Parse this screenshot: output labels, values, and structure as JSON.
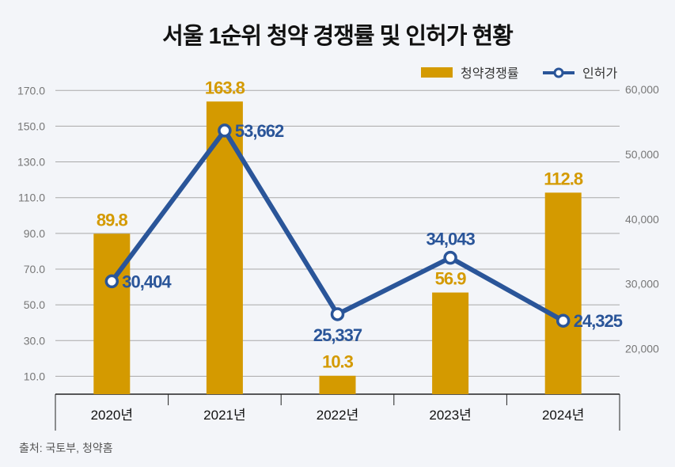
{
  "title": "서울 1순위 청약 경쟁률 및 인허가 현황",
  "source": "출처: 국토부, 청약홈",
  "chart_data": {
    "type": "bar+line",
    "categories": [
      "2020년",
      "2021년",
      "2022년",
      "2023년",
      "2024년"
    ],
    "series": [
      {
        "name": "청약경쟁률",
        "type": "bar",
        "axis": "left",
        "color": "#d49a00",
        "values": [
          89.8,
          163.8,
          10.3,
          56.9,
          112.8
        ],
        "labels": [
          "89.8",
          "163.8",
          "10.3",
          "56.9",
          "112.8"
        ]
      },
      {
        "name": "인허가",
        "type": "line",
        "axis": "right",
        "color": "#2a5599",
        "values": [
          30404,
          53662,
          25337,
          34043,
          24325
        ],
        "labels": [
          "30,404",
          "53,662",
          "25,337",
          "34,043",
          "24,325"
        ]
      }
    ],
    "left_axis": {
      "ylim": [
        0,
        171
      ],
      "ticks": [
        10,
        30,
        50,
        70,
        90,
        110,
        130,
        150,
        170
      ],
      "tick_labels": [
        "10.0",
        "30.0",
        "50.0",
        "70.0",
        "90.0",
        "110.0",
        "130.0",
        "150.0",
        "170.0"
      ]
    },
    "right_axis": {
      "ylim": [
        13000,
        60000
      ],
      "ticks": [
        20000,
        30000,
        40000,
        50000,
        60000
      ],
      "tick_labels": [
        "20,000",
        "30,000",
        "40,000",
        "50,000",
        "60,000"
      ]
    },
    "grid": true,
    "legend": "top-right"
  }
}
